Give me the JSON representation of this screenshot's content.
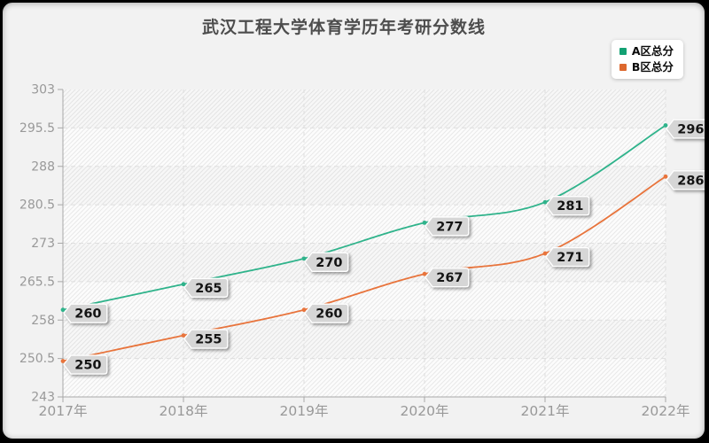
{
  "title": "武汉工程大学体育学历年考研分数线",
  "legend": {
    "items": [
      {
        "label": "A区总分",
        "color": "#12a173"
      },
      {
        "label": "B区总分",
        "color": "#dd682e"
      }
    ]
  },
  "chart_data": {
    "type": "line",
    "title": "武汉工程大学体育学历年考研分数线",
    "categories": [
      "2017年",
      "2018年",
      "2019年",
      "2020年",
      "2021年",
      "2022年"
    ],
    "series": [
      {
        "name": "A区总分",
        "color": "#2fb38b",
        "values": [
          260,
          265,
          270,
          277,
          281,
          296
        ]
      },
      {
        "name": "B区总分",
        "color": "#e8743c",
        "values": [
          250,
          255,
          260,
          267,
          271,
          286
        ]
      }
    ],
    "ylim": [
      243,
      303
    ],
    "yticks": [
      243,
      250.5,
      258,
      265.5,
      273,
      280.5,
      288,
      295.5,
      303
    ],
    "xlabel": "",
    "ylabel": "",
    "grid": true,
    "curve": "smooth",
    "legend_position": "top-right",
    "data_labels": true
  },
  "style": {
    "card_bg": "#f2f2f2",
    "plot_bg": "#fcfcfc",
    "hatch_color": "#e9e9e9",
    "alt_band_color": "rgba(0,0,0,0.018)",
    "grid_color": "#dedede",
    "axis_color": "#a8a8a8",
    "tick_label_color": "#999999",
    "title_color": "#4d4d4d",
    "label_box_fill": "#d6d6d6",
    "label_box_stroke": "#ffffff",
    "label_text_color": "#141414"
  }
}
